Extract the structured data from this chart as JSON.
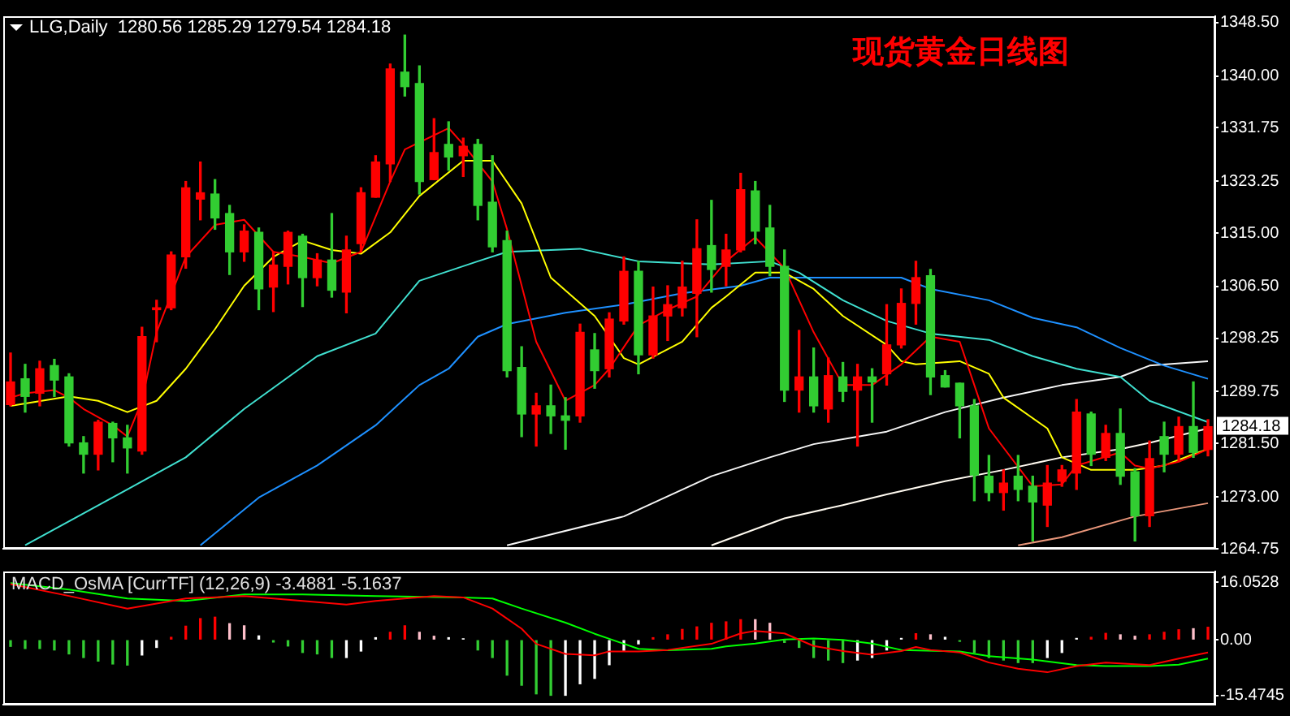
{
  "chart_data": [
    {
      "type": "candlestick",
      "title": "现货黄金日线图",
      "annotations": [
        "LLG,Daily  1280.56 1285.29 1279.54 1284.18",
        "1284.18"
      ],
      "tick_labels": "y",
      "categories": [
        null,
        null,
        null,
        null,
        null,
        null,
        null,
        null,
        null,
        null,
        null,
        null,
        null,
        null,
        null,
        null,
        null,
        null,
        null,
        null,
        null,
        null,
        null,
        null,
        null,
        null,
        null,
        null,
        null,
        null,
        null,
        null,
        null,
        null,
        null,
        null,
        null,
        null,
        null,
        null,
        null,
        null,
        null,
        null,
        null,
        null,
        null,
        null,
        null,
        null,
        null,
        null,
        null,
        null,
        null,
        null,
        null,
        null,
        null,
        null,
        null,
        null,
        null,
        null,
        null,
        null,
        null,
        null,
        null,
        null,
        null,
        null,
        null,
        null,
        null,
        null,
        null,
        null,
        null,
        null,
        null,
        null,
        null
      ],
      "ohlc": [
        [
          1287.7,
          1295.9,
          1287.5,
          1291.3
        ],
        [
          1291.8,
          1294.1,
          1286.5,
          1289.0
        ],
        [
          1289.5,
          1294.6,
          1287.5,
          1293.4
        ],
        [
          1293.9,
          1294.9,
          1289.0,
          1291.6
        ],
        [
          1292.1,
          1292.6,
          1281.1,
          1281.6
        ],
        [
          1281.6,
          1282.6,
          1276.8,
          1279.8
        ],
        [
          1279.8,
          1285.2,
          1277.3,
          1284.9
        ],
        [
          1284.7,
          1284.9,
          1278.6,
          1282.4
        ],
        [
          1282.4,
          1284.4,
          1276.8,
          1280.8
        ],
        [
          1280.3,
          1300.0,
          1279.8,
          1298.5
        ],
        [
          1302.8,
          1304.3,
          1297.7,
          1303.1
        ],
        [
          1303.1,
          1312.0,
          1302.8,
          1311.5
        ],
        [
          1311.2,
          1323.2,
          1309.4,
          1322.2
        ],
        [
          1320.4,
          1326.3,
          1317.1,
          1321.4
        ],
        [
          1321.2,
          1323.5,
          1315.6,
          1317.4
        ],
        [
          1318.1,
          1319.4,
          1308.4,
          1312.0
        ],
        [
          1312.0,
          1316.3,
          1310.5,
          1315.3
        ],
        [
          1315.1,
          1315.8,
          1302.8,
          1306.1
        ],
        [
          1306.4,
          1312.0,
          1302.5,
          1309.9
        ],
        [
          1309.7,
          1315.3,
          1306.9,
          1315.1
        ],
        [
          1314.5,
          1314.8,
          1303.3,
          1307.9
        ],
        [
          1307.9,
          1311.7,
          1306.6,
          1310.7
        ],
        [
          1310.7,
          1318.1,
          1304.8,
          1305.9
        ],
        [
          1305.6,
          1314.5,
          1302.3,
          1312.3
        ],
        [
          1313.3,
          1322.2,
          1312.0,
          1321.4
        ],
        [
          1320.7,
          1327.3,
          1320.7,
          1326.3
        ],
        [
          1326.0,
          1341.9,
          1323.2,
          1341.1
        ],
        [
          1340.6,
          1346.5,
          1336.8,
          1338.3
        ],
        [
          1338.8,
          1341.6,
          1321.2,
          1323.2
        ],
        [
          1323.5,
          1333.2,
          1323.5,
          1327.8
        ],
        [
          1329.1,
          1332.7,
          1325.0,
          1327.1
        ],
        [
          1327.3,
          1330.1,
          1324.0,
          1328.8
        ],
        [
          1329.1,
          1329.9,
          1317.1,
          1319.4
        ],
        [
          1319.9,
          1327.3,
          1312.0,
          1312.8
        ],
        [
          1313.8,
          1315.3,
          1292.1,
          1293.1
        ],
        [
          1293.6,
          1296.9,
          1282.6,
          1286.2
        ],
        [
          1286.2,
          1289.5,
          1281.1,
          1287.5
        ],
        [
          1287.5,
          1290.8,
          1283.1,
          1285.9
        ],
        [
          1285.9,
          1288.8,
          1280.6,
          1285.2
        ],
        [
          1285.9,
          1300.5,
          1284.9,
          1299.2
        ],
        [
          1296.4,
          1299.0,
          1290.3,
          1293.1
        ],
        [
          1293.4,
          1302.3,
          1292.1,
          1301.3
        ],
        [
          1301.0,
          1311.2,
          1300.5,
          1308.9
        ],
        [
          1308.9,
          1310.5,
          1292.6,
          1295.6
        ],
        [
          1295.6,
          1306.4,
          1295.1,
          1301.8
        ],
        [
          1301.8,
          1306.6,
          1297.9,
          1303.6
        ],
        [
          1303.1,
          1310.5,
          1301.8,
          1306.4
        ],
        [
          1305.4,
          1317.1,
          1298.5,
          1312.5
        ],
        [
          1313.0,
          1320.2,
          1305.6,
          1309.2
        ],
        [
          1309.7,
          1314.8,
          1306.6,
          1312.3
        ],
        [
          1312.3,
          1324.5,
          1312.0,
          1321.9
        ],
        [
          1321.7,
          1323.2,
          1313.3,
          1315.3
        ],
        [
          1315.8,
          1319.4,
          1308.2,
          1309.7
        ],
        [
          1309.7,
          1312.3,
          1288.2,
          1290.0
        ],
        [
          1290.0,
          1299.5,
          1286.5,
          1292.1
        ],
        [
          1292.1,
          1296.7,
          1286.5,
          1287.5
        ],
        [
          1287.0,
          1295.1,
          1284.9,
          1292.3
        ],
        [
          1292.1,
          1294.4,
          1288.2,
          1289.8
        ],
        [
          1290.0,
          1294.1,
          1281.1,
          1292.1
        ],
        [
          1292.1,
          1293.4,
          1284.9,
          1291.3
        ],
        [
          1292.6,
          1303.6,
          1290.8,
          1297.2
        ],
        [
          1297.2,
          1306.1,
          1296.7,
          1303.8
        ],
        [
          1303.8,
          1310.5,
          1300.5,
          1307.9
        ],
        [
          1308.2,
          1309.2,
          1289.3,
          1292.1
        ],
        [
          1292.3,
          1293.1,
          1290.5,
          1290.5
        ],
        [
          1291.1,
          1291.1,
          1282.4,
          1287.5
        ],
        [
          1287.5,
          1288.5,
          1272.4,
          1276.5
        ],
        [
          1276.3,
          1279.6,
          1272.4,
          1273.7
        ],
        [
          1273.7,
          1277.3,
          1270.9,
          1275.2
        ],
        [
          1276.3,
          1279.6,
          1272.4,
          1274.2
        ],
        [
          1274.7,
          1276.3,
          1266.0,
          1272.2
        ],
        [
          1271.7,
          1278.0,
          1268.3,
          1275.2
        ],
        [
          1275.5,
          1278.0,
          1274.7,
          1277.3
        ],
        [
          1276.8,
          1288.5,
          1274.2,
          1286.5
        ],
        [
          1286.2,
          1286.5,
          1278.0,
          1279.8
        ],
        [
          1279.3,
          1284.4,
          1278.8,
          1283.1
        ],
        [
          1283.1,
          1287.0,
          1275.0,
          1276.3
        ],
        [
          1277.0,
          1277.5,
          1266.0,
          1270.0
        ],
        [
          1270.0,
          1281.9,
          1268.3,
          1279.1
        ],
        [
          1282.6,
          1284.9,
          1277.0,
          1279.8
        ],
        [
          1279.8,
          1285.7,
          1278.8,
          1284.2
        ],
        [
          1284.2,
          1291.3,
          1279.3,
          1280.1
        ],
        [
          1280.56,
          1285.29,
          1279.54,
          1284.18
        ]
      ],
      "colors": [
        "#ff0000",
        "#32cd32",
        "#ff0000",
        "#32cd32",
        "#32cd32",
        "#32cd32",
        "#ff0000",
        "#32cd32",
        "#32cd32",
        "#ff0000",
        "#ff0000",
        "#ff0000",
        "#ff0000",
        "#ff0000",
        "#32cd32",
        "#32cd32",
        "#ff0000",
        "#32cd32",
        "#ff0000",
        "#ff0000",
        "#32cd32",
        "#ff0000",
        "#32cd32",
        "#ff0000",
        "#ff0000",
        "#ff0000",
        "#ff0000",
        "#32cd32",
        "#32cd32",
        "#ff0000",
        "#32cd32",
        "#ff0000",
        "#32cd32",
        "#32cd32",
        "#32cd32",
        "#32cd32",
        "#ff0000",
        "#32cd32",
        "#32cd32",
        "#ff0000",
        "#32cd32",
        "#ff0000",
        "#ff0000",
        "#32cd32",
        "#ff0000",
        "#ff0000",
        "#ff0000",
        "#ff0000",
        "#32cd32",
        "#ff0000",
        "#ff0000",
        "#32cd32",
        "#32cd32",
        "#32cd32",
        "#ff0000",
        "#32cd32",
        "#ff0000",
        "#32cd32",
        "#ff0000",
        "#32cd32",
        "#ff0000",
        "#ff0000",
        "#ff0000",
        "#32cd32",
        "#32cd32",
        "#32cd32",
        "#32cd32",
        "#32cd32",
        "#ff0000",
        "#32cd32",
        "#32cd32",
        "#ff0000",
        "#ff0000",
        "#ff0000",
        "#32cd32",
        "#ff0000",
        "#32cd32",
        "#32cd32",
        "#ff0000",
        "#32cd32",
        "#ff0000",
        "#32cd32",
        "#ff0000"
      ],
      "series": [
        {
          "type": "line",
          "color": "#ff0000",
          "values": [
            1288.8,
            1289.5,
            null,
            1290.0,
            1288.8,
            1287.0,
            1285.7,
            1284.4,
            1282.6,
            1288.3,
            1299.2,
            null,
            1311.2,
            null,
            1316.3,
            null,
            1317.1,
            null,
            1312.0,
            null,
            1311.2,
            null,
            1310.2,
            null,
            1312.0,
            null,
            1323.2,
            1328.3,
            null,
            null,
            1331.7,
            1329.1,
            null,
            1323.2,
            1315.6,
            null,
            1297.7,
            null,
            1288.3,
            null,
            1290.8,
            1293.4,
            null,
            1300.3,
            null,
            1302.8,
            null,
            1304.9,
            null,
            1310.5,
            null,
            1314.3,
            null,
            1309.4,
            null,
            1299.2,
            null,
            1290.8,
            null,
            1290.8,
            null,
            1294.1,
            null,
            1298.5,
            null,
            1297.7,
            1290.8,
            1283.9,
            null,
            null,
            1274.7,
            null,
            1275.0,
            1278.0,
            null,
            null,
            1280.1,
            1278.0,
            1277.5,
            null,
            1278.6,
            null,
            1280.6
          ]
        },
        {
          "type": "line",
          "color": "#ffff00",
          "values": [
            1287.5,
            null,
            null,
            null,
            1289.0,
            null,
            1288.3,
            null,
            1286.5,
            null,
            1288.3,
            null,
            1293.4,
            null,
            1299.7,
            null,
            1306.6,
            null,
            1311.2,
            null,
            1313.8,
            null,
            1312.3,
            null,
            1311.7,
            null,
            1315.1,
            null,
            1320.9,
            null,
            null,
            1326.5,
            null,
            1326.5,
            null,
            1319.7,
            null,
            1307.9,
            null,
            null,
            1301.8,
            null,
            1295.1,
            1294.1,
            null,
            null,
            1297.7,
            null,
            1303.1,
            1304.9,
            null,
            1308.7,
            null,
            1308.7,
            null,
            1306.1,
            null,
            1301.8,
            null,
            null,
            1297.2,
            1294.6,
            1294.1,
            null,
            null,
            1294.6,
            null,
            1292.6,
            1288.8,
            null,
            null,
            1283.9,
            1279.3,
            null,
            1277.3,
            null,
            null,
            1277.3,
            null,
            1278.0,
            null,
            1279.8,
            1280.6
          ]
        },
        {
          "type": "line",
          "color": "#40e0d0",
          "values": [
            null,
            1265.3,
            null,
            null,
            null,
            1270.4,
            null,
            null,
            1274.2,
            null,
            null,
            null,
            1279.3,
            null,
            null,
            null,
            1287.0,
            null,
            null,
            null,
            null,
            1295.4,
            null,
            null,
            null,
            1299.0,
            null,
            null,
            1307.4,
            null,
            null,
            null,
            1310.5,
            null,
            1312.0,
            null,
            null,
            null,
            null,
            1312.5,
            null,
            null,
            null,
            1310.5,
            null,
            null,
            null,
            null,
            1310.0,
            null,
            null,
            null,
            1310.5,
            null,
            1308.7,
            null,
            null,
            1304.3,
            null,
            null,
            1301.0,
            null,
            null,
            1299.0,
            null,
            null,
            null,
            1298.0,
            null,
            null,
            1295.4,
            null,
            null,
            1293.4,
            null,
            null,
            1292.1,
            null,
            1288.3,
            null,
            null,
            null,
            1284.9
          ]
        },
        {
          "type": "line",
          "color": "#1e90ff",
          "values": [
            null,
            null,
            null,
            null,
            null,
            null,
            null,
            null,
            null,
            null,
            null,
            null,
            null,
            1265.3,
            null,
            null,
            null,
            1272.9,
            null,
            null,
            null,
            1278.0,
            null,
            null,
            null,
            1284.4,
            null,
            null,
            1290.8,
            null,
            1293.4,
            null,
            1298.5,
            null,
            1300.5,
            null,
            null,
            null,
            1302.3,
            null,
            null,
            null,
            1303.6,
            null,
            null,
            null,
            1305.4,
            null,
            null,
            null,
            1306.6,
            null,
            1307.9,
            null,
            null,
            null,
            1307.9,
            null,
            null,
            null,
            null,
            1307.9,
            null,
            1306.1,
            null,
            null,
            null,
            1304.3,
            null,
            null,
            1301.5,
            null,
            null,
            1300.0,
            null,
            null,
            1296.7,
            null,
            null,
            1293.9,
            null,
            null,
            1291.8
          ]
        },
        {
          "type": "line",
          "color": "#f5f5f5",
          "values": [
            null,
            null,
            null,
            null,
            null,
            null,
            null,
            null,
            null,
            null,
            null,
            null,
            null,
            null,
            null,
            null,
            null,
            null,
            null,
            null,
            null,
            null,
            null,
            null,
            null,
            null,
            null,
            null,
            null,
            null,
            null,
            null,
            null,
            null,
            1265.3,
            null,
            null,
            null,
            null,
            null,
            null,
            null,
            1269.9,
            null,
            null,
            null,
            null,
            null,
            1276.3,
            null,
            null,
            null,
            1279.3,
            null,
            null,
            1281.4,
            null,
            null,
            null,
            null,
            1283.4,
            null,
            null,
            null,
            1286.5,
            null,
            null,
            null,
            1288.8,
            null,
            null,
            null,
            1290.8,
            null,
            null,
            null,
            1292.1,
            null,
            1293.9,
            null,
            null,
            null,
            1294.6
          ]
        },
        {
          "type": "line",
          "color": "#fffaf0",
          "values": [
            null,
            null,
            null,
            null,
            null,
            null,
            null,
            null,
            null,
            null,
            null,
            null,
            null,
            null,
            null,
            null,
            null,
            null,
            null,
            null,
            null,
            null,
            null,
            null,
            null,
            null,
            null,
            null,
            null,
            null,
            null,
            null,
            null,
            null,
            null,
            null,
            null,
            null,
            null,
            null,
            null,
            null,
            null,
            null,
            null,
            null,
            null,
            null,
            1265.3,
            null,
            null,
            null,
            null,
            1269.6,
            null,
            null,
            null,
            1271.7,
            null,
            null,
            1273.4,
            null,
            null,
            null,
            1275.5,
            null,
            null,
            null,
            1277.3,
            null,
            null,
            null,
            1279.3,
            null,
            null,
            null,
            1280.6,
            null,
            1281.6,
            null,
            null,
            null,
            1283.9
          ]
        },
        {
          "type": "line",
          "color": "#e9967a",
          "values": [
            null,
            null,
            null,
            null,
            null,
            null,
            null,
            null,
            null,
            null,
            null,
            null,
            null,
            null,
            null,
            null,
            null,
            null,
            null,
            null,
            null,
            null,
            null,
            null,
            null,
            null,
            null,
            null,
            null,
            null,
            null,
            null,
            null,
            null,
            null,
            null,
            null,
            null,
            null,
            null,
            null,
            null,
            null,
            null,
            null,
            null,
            null,
            null,
            null,
            null,
            null,
            null,
            null,
            null,
            null,
            null,
            null,
            null,
            null,
            null,
            null,
            null,
            null,
            null,
            null,
            null,
            null,
            null,
            null,
            1265.3,
            null,
            null,
            1266.6,
            null,
            null,
            null,
            null,
            1269.9,
            null,
            null,
            null,
            null,
            1272.0
          ]
        }
      ],
      "ylim": [
        1264.75,
        1349.5
      ],
      "yticks": [
        {
          "value": 1348.5,
          "label": "1348.50"
        },
        {
          "value": 1340,
          "label": "1340.00"
        },
        {
          "value": 1331.75,
          "label": "1331.75"
        },
        {
          "value": 1323.25,
          "label": "1323.25"
        },
        {
          "value": 1315,
          "label": "1315.00"
        },
        {
          "value": 1306.5,
          "label": "1306.50"
        },
        {
          "value": 1298.25,
          "label": "1298.25"
        },
        {
          "value": 1289.75,
          "label": "1289.75"
        },
        {
          "value": 1281.5,
          "label": "1281.50"
        },
        {
          "value": 1273,
          "label": "1273.00"
        },
        {
          "value": 1264.75,
          "label": "1264.75"
        }
      ],
      "grid": false
    },
    {
      "type": "bar",
      "title": "MACD_OsMA [CurrTF] (12,26,9) -3.4881 -5.1637",
      "tick_labels": "y",
      "categories": [
        null,
        null,
        null,
        null,
        null,
        null,
        null,
        null,
        null,
        null,
        null,
        null,
        null,
        null,
        null,
        null,
        null,
        null,
        null,
        null,
        null,
        null,
        null,
        null,
        null,
        null,
        null,
        null,
        null,
        null,
        null,
        null,
        null,
        null,
        null,
        null,
        null,
        null,
        null,
        null,
        null,
        null,
        null,
        null,
        null,
        null,
        null,
        null,
        null,
        null,
        null,
        null,
        null,
        null,
        null,
        null,
        null,
        null,
        null,
        null,
        null,
        null,
        null,
        null,
        null,
        null,
        null,
        null,
        null,
        null,
        null,
        null,
        null,
        null,
        null,
        null,
        null,
        null,
        null,
        null,
        null,
        null,
        null
      ],
      "series": [
        {
          "type": "bar",
          "values": [
            -1.8,
            -2.4,
            -2.4,
            -2.8,
            -3.9,
            -4.9,
            -5.9,
            -6.7,
            -7.0,
            -4.2,
            -2.1,
            0.7,
            3.8,
            5.9,
            6.3,
            4.5,
            3.9,
            1.1,
            -0.6,
            -1.7,
            -3.5,
            -3.9,
            -4.9,
            -4.9,
            -3.1,
            0.6,
            2.1,
            3.9,
            2.1,
            1.0,
            0.6,
            0.3,
            -2.8,
            -4.9,
            -9.8,
            -12.6,
            -15.0,
            -15.4,
            -15.4,
            -12.2,
            -10.7,
            -6.9,
            -2.9,
            -1.1,
            0.6,
            1.4,
            2.9,
            3.6,
            4.6,
            5.0,
            5.6,
            5.6,
            4.6,
            -0.7,
            -2.1,
            -4.9,
            -5.6,
            -6.3,
            -5.6,
            -4.9,
            -2.8,
            0.4,
            1.7,
            1.4,
            0.7,
            -0.4,
            -3.5,
            -4.9,
            -5.6,
            -6.3,
            -6.3,
            -4.9,
            -3.5,
            0.4,
            0.7,
            1.8,
            1.4,
            1.0,
            1.4,
            2.1,
            2.8,
            3.1,
            3.5
          ],
          "colors": [
            "#32cd32",
            "#32cd32",
            "#32cd32",
            "#32cd32",
            "#32cd32",
            "#32cd32",
            "#32cd32",
            "#32cd32",
            "#32cd32",
            "#ffffff",
            "#ffffff",
            "#ff0000",
            "#ff0000",
            "#ff0000",
            "#ff0000",
            "#ffc0cb",
            "#ffc0cb",
            "#ffffff",
            "#32cd32",
            "#32cd32",
            "#32cd32",
            "#32cd32",
            "#32cd32",
            "#ffffff",
            "#ffffff",
            "#ffffff",
            "#ff0000",
            "#ff0000",
            "#ffc0cb",
            "#ffc0cb",
            "#ffffff",
            "#ffffff",
            "#32cd32",
            "#32cd32",
            "#32cd32",
            "#32cd32",
            "#32cd32",
            "#32cd32",
            "#ffffff",
            "#ffffff",
            "#ffffff",
            "#ffffff",
            "#ffffff",
            "#ffffff",
            "#ff0000",
            "#ff0000",
            "#ff0000",
            "#ff0000",
            "#ff0000",
            "#ff0000",
            "#ff0000",
            "#ffc0cb",
            "#ffc0cb",
            "#32cd32",
            "#32cd32",
            "#32cd32",
            "#32cd32",
            "#32cd32",
            "#ffffff",
            "#ffffff",
            "#ffffff",
            "#ffffff",
            "#ff0000",
            "#ffc0cb",
            "#ffffff",
            "#32cd32",
            "#32cd32",
            "#32cd32",
            "#32cd32",
            "#32cd32",
            "#32cd32",
            "#ffffff",
            "#ffffff",
            "#ffffff",
            "#ff0000",
            "#ff0000",
            "#ffc0cb",
            "#ffc0cb",
            "#ff0000",
            "#ff0000",
            "#ff0000",
            "#ffc0cb",
            "#ff0000"
          ]
        },
        {
          "type": "line",
          "color": "#ff0000",
          "values": [
            15.5,
            null,
            null,
            null,
            12.2,
            null,
            null,
            null,
            8.7,
            null,
            null,
            null,
            11.5,
            null,
            null,
            null,
            12.2,
            null,
            null,
            null,
            10.8,
            null,
            null,
            9.8,
            null,
            10.8,
            null,
            null,
            null,
            12.2,
            null,
            11.8,
            null,
            8.7,
            null,
            3.1,
            -1.1,
            null,
            -3.9,
            null,
            -4.3,
            -3.2,
            null,
            -3.2,
            null,
            -2.8,
            null,
            null,
            -1.1,
            null,
            1.8,
            2.5,
            null,
            1.8,
            null,
            -1.7,
            null,
            -3.1,
            null,
            -4.1,
            null,
            -3.1,
            -2.0,
            -2.8,
            null,
            -3.5,
            null,
            -6.3,
            null,
            -8.0,
            null,
            -9.0,
            null,
            -7.3,
            null,
            -6.3,
            null,
            null,
            -7.0,
            null,
            -5.2,
            null,
            -3.5
          ]
        },
        {
          "type": "line",
          "color": "#00ff00",
          "values": [
            15.8,
            null,
            null,
            null,
            14.0,
            null,
            null,
            null,
            11.5,
            null,
            null,
            null,
            10.8,
            null,
            null,
            null,
            12.6,
            null,
            null,
            null,
            12.6,
            null,
            null,
            null,
            null,
            12.2,
            null,
            null,
            null,
            11.9,
            null,
            11.8,
            null,
            11.5,
            null,
            8.7,
            null,
            null,
            4.8,
            null,
            1.7,
            0.3,
            null,
            -2.5,
            null,
            -2.9,
            null,
            null,
            -2.5,
            -1.8,
            null,
            -1.0,
            null,
            0.1,
            null,
            0.4,
            null,
            0.0,
            null,
            -1.0,
            null,
            -2.8,
            null,
            null,
            null,
            -3.2,
            null,
            -4.5,
            null,
            null,
            -5.5,
            null,
            null,
            -7.0,
            null,
            -7.3,
            null,
            null,
            -7.3,
            null,
            -6.9,
            null,
            -5.2
          ]
        }
      ],
      "ylim": [
        -18,
        19
      ],
      "yticks": [
        {
          "value": 16.0528,
          "label": "16.0528"
        },
        {
          "value": 0,
          "label": "0.00"
        },
        {
          "value": -15.4745,
          "label": "-15.4745"
        }
      ]
    }
  ]
}
